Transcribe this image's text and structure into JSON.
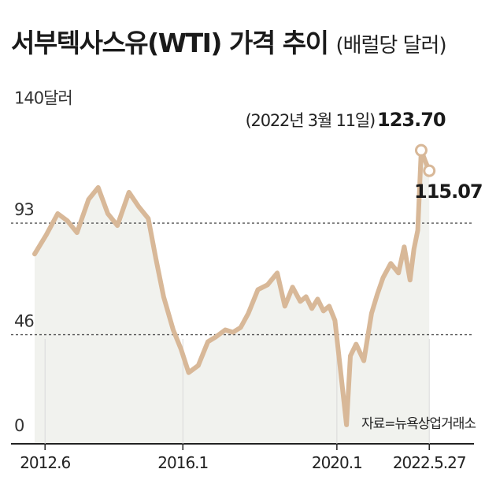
{
  "title": "서부텍사스유(WTI) 가격 추이",
  "unit": "(배럴당 달러)",
  "source": "자료=뉴욕상업거래소",
  "colors": {
    "line": "#d8b898",
    "area": "#f1f2ee",
    "gridline": "#555555",
    "axis": "#222222"
  },
  "chart_data": {
    "type": "line",
    "title": "서부텍사스유(WTI) 가격 추이",
    "ylabel": "(배럴당 달러)",
    "ylim": [
      0,
      140
    ],
    "y_ticks": [
      {
        "value": 0,
        "label": "0"
      },
      {
        "value": 46,
        "label": "46"
      },
      {
        "value": 93,
        "label": "93"
      },
      {
        "value": 140,
        "label": "140달러"
      }
    ],
    "x_ticks": [
      {
        "x": 2012.42,
        "label": "2012.6"
      },
      {
        "x": 2016.0,
        "label": "2016.1"
      },
      {
        "x": 2020.0,
        "label": "2020.1"
      },
      {
        "x": 2022.4,
        "label": "2022.5.27"
      }
    ],
    "dashed_gridlines": [
      46,
      93
    ],
    "x": [
      2012.15,
      2012.45,
      2012.75,
      2013.0,
      2013.25,
      2013.55,
      2013.8,
      2014.05,
      2014.3,
      2014.6,
      2014.85,
      2015.1,
      2015.3,
      2015.5,
      2015.75,
      2015.95,
      2016.15,
      2016.4,
      2016.65,
      2016.85,
      2017.1,
      2017.3,
      2017.5,
      2017.7,
      2017.95,
      2018.2,
      2018.45,
      2018.65,
      2018.85,
      2019.05,
      2019.2,
      2019.35,
      2019.5,
      2019.65,
      2019.8,
      2019.95,
      2020.1,
      2020.25,
      2020.35,
      2020.5,
      2020.7,
      2020.9,
      2021.05,
      2021.2,
      2021.4,
      2021.6,
      2021.75,
      2021.9,
      2022.0,
      2022.1,
      2022.19,
      2022.3,
      2022.4
    ],
    "values": [
      80,
      88,
      97,
      94,
      89,
      103,
      108,
      97,
      92,
      106,
      100,
      95,
      78,
      62,
      48,
      40,
      30,
      33,
      43,
      45,
      48,
      47,
      49,
      55,
      65,
      67,
      72,
      58,
      66,
      60,
      62,
      57,
      61,
      56,
      58,
      52,
      30,
      8,
      37,
      42,
      35,
      55,
      63,
      70,
      76,
      72,
      83,
      69,
      82,
      90,
      123.7,
      119,
      115.07
    ],
    "markers": [
      {
        "x": 2022.19,
        "value": 123.7,
        "date_label": "(2022년 3월 11일)",
        "value_label": "123.70"
      },
      {
        "x": 2022.4,
        "value": 115.07,
        "value_label": "115.07"
      }
    ],
    "source": "자료=뉴욕상업거래소"
  }
}
